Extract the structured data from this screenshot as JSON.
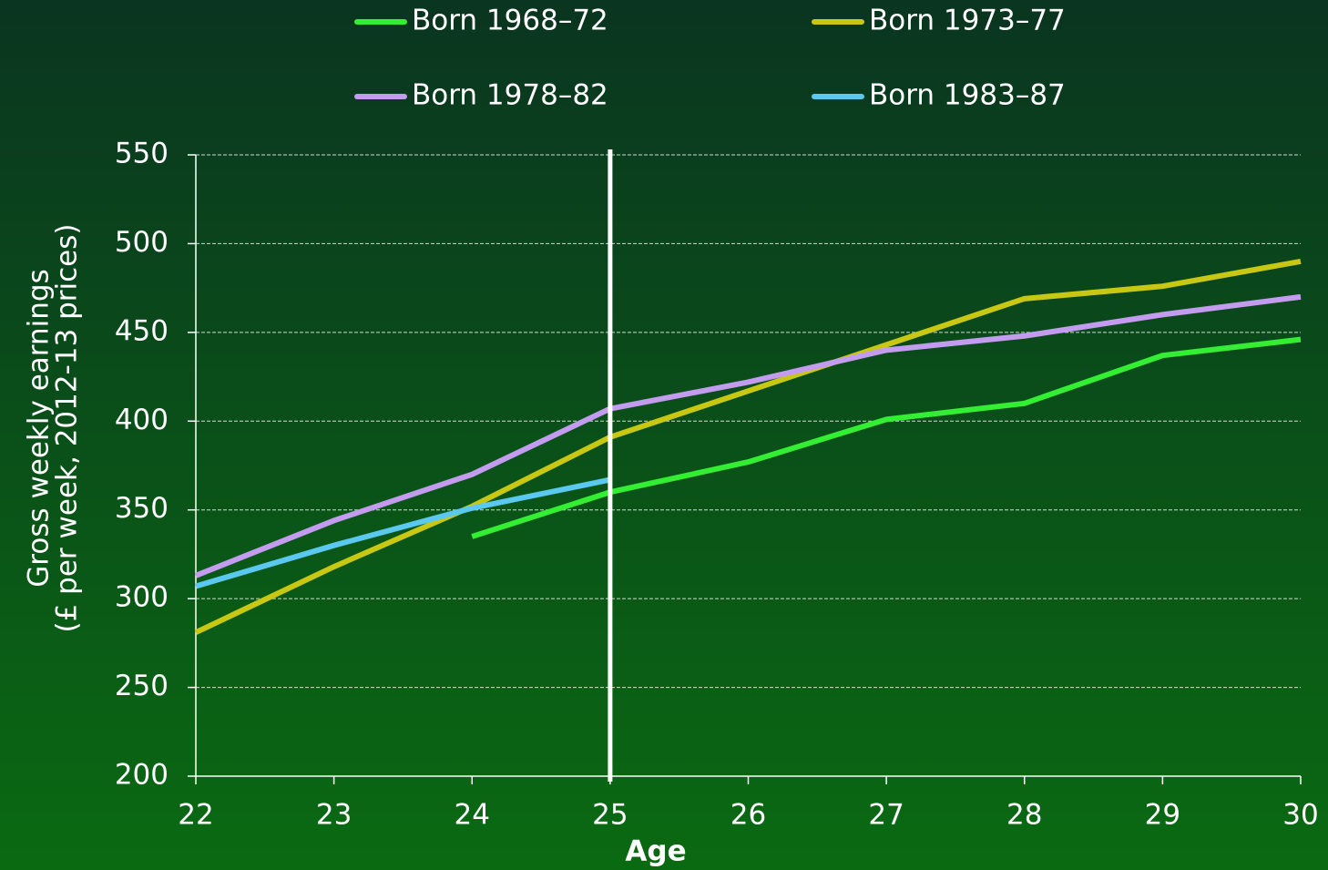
{
  "chart_data": {
    "type": "line",
    "x": [
      22,
      23,
      24,
      25,
      26,
      27,
      28,
      29,
      30
    ],
    "xlabel": "Age",
    "ylabel": [
      "Gross weekly earnings",
      "(£ per week, 2012-13 prices)"
    ],
    "xlim": [
      22,
      30
    ],
    "xticks": [
      22,
      23,
      24,
      25,
      26,
      27,
      28,
      29,
      30
    ],
    "ylim": [
      200,
      550
    ],
    "yticks": [
      200,
      250,
      300,
      350,
      400,
      450,
      500,
      550
    ],
    "grid": true,
    "legend": "top",
    "reference_x": 25,
    "series": [
      {
        "name": "Born 1968–72",
        "color": "#33ee33",
        "values": [
          null,
          null,
          335,
          360,
          377,
          401,
          410,
          437,
          446
        ]
      },
      {
        "name": "Born 1973–77",
        "color": "#c8c814",
        "values": [
          281,
          318,
          352,
          391,
          417,
          443,
          469,
          476,
          490
        ]
      },
      {
        "name": "Born 1978–82",
        "color": "#c39cf0",
        "values": [
          313,
          344,
          370,
          407,
          422,
          440,
          448,
          460,
          470
        ]
      },
      {
        "name": "Born 1983–87",
        "color": "#5bc8f0",
        "values": [
          307,
          330,
          351,
          367,
          null,
          null,
          null,
          null,
          null
        ]
      }
    ]
  }
}
